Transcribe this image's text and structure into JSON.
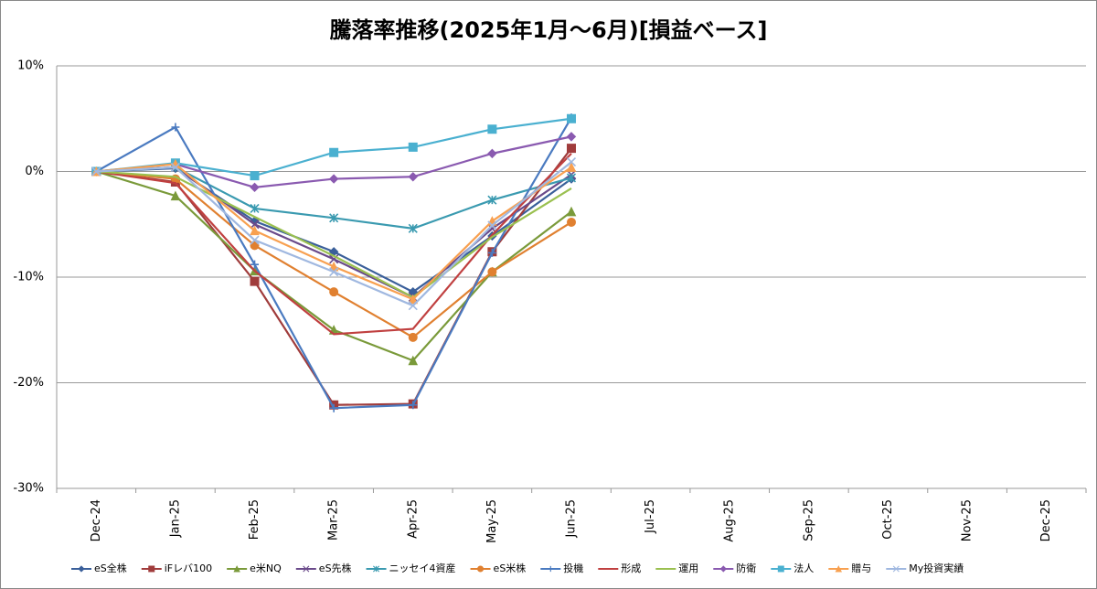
{
  "chart_data": {
    "type": "line",
    "title": "騰落率推移(2025年1月～6月)[損益ベース]",
    "categories": [
      "Dec-24",
      "Jan-25",
      "Feb-25",
      "Mar-25",
      "Apr-25",
      "May-25",
      "Jun-25",
      "Jul-25",
      "Aug-25",
      "Sep-25",
      "Oct-25",
      "Nov-25",
      "Dec-25"
    ],
    "ylim": [
      -30,
      10
    ],
    "yticks": [
      {
        "value": -30,
        "label": "-30%"
      },
      {
        "value": -20,
        "label": "-20%"
      },
      {
        "value": -10,
        "label": "-10%"
      },
      {
        "value": 0,
        "label": "0%"
      },
      {
        "value": 10,
        "label": "10%"
      }
    ],
    "grid": true,
    "legend": "bottom",
    "series": [
      {
        "name": "eS全株",
        "color": "#3a5f9a",
        "marker": "diamond",
        "values": [
          0,
          0.3,
          -4.7,
          -7.6,
          -11.4,
          -6.1,
          -0.7,
          null,
          null,
          null,
          null,
          null,
          null
        ]
      },
      {
        "name": "iFレバ100",
        "color": "#a03c3c",
        "marker": "square",
        "values": [
          0,
          -1.0,
          -10.4,
          -22.1,
          -22.0,
          -7.6,
          2.2,
          null,
          null,
          null,
          null,
          null,
          null
        ]
      },
      {
        "name": "e米NQ",
        "color": "#7a9a3a",
        "marker": "triangle",
        "values": [
          0,
          -2.3,
          -9.4,
          -15.0,
          -17.9,
          -9.5,
          -3.8,
          null,
          null,
          null,
          null,
          null,
          null
        ]
      },
      {
        "name": "eS先株",
        "color": "#6a4a8a",
        "marker": "x",
        "values": [
          0,
          0.4,
          -5.0,
          -8.3,
          -11.9,
          -5.4,
          -0.3,
          null,
          null,
          null,
          null,
          null,
          null
        ]
      },
      {
        "name": "ニッセイ4資産",
        "color": "#3a9ab0",
        "marker": "star",
        "values": [
          0,
          0.4,
          -3.5,
          -4.4,
          -5.4,
          -2.7,
          -0.6,
          null,
          null,
          null,
          null,
          null,
          null
        ]
      },
      {
        "name": "eS米株",
        "color": "#e08030",
        "marker": "circle",
        "values": [
          0,
          -0.7,
          -7.0,
          -11.4,
          -15.7,
          -9.5,
          -4.8,
          null,
          null,
          null,
          null,
          null,
          null
        ]
      },
      {
        "name": "投機",
        "color": "#4a7ac0",
        "marker": "plus",
        "values": [
          0,
          4.2,
          -8.8,
          -22.4,
          -22.1,
          -7.7,
          5.1,
          null,
          null,
          null,
          null,
          null,
          null
        ]
      },
      {
        "name": "形成",
        "color": "#c04040",
        "marker": "none",
        "values": [
          0,
          -1.1,
          -9.4,
          -15.4,
          -14.9,
          -6.0,
          1.7,
          null,
          null,
          null,
          null,
          null,
          null
        ]
      },
      {
        "name": "運用",
        "color": "#9ac050",
        "marker": "none",
        "values": [
          0,
          -0.5,
          -4.3,
          -8.0,
          -11.9,
          -6.2,
          -1.6,
          null,
          null,
          null,
          null,
          null,
          null
        ]
      },
      {
        "name": "防衛",
        "color": "#8a5ab0",
        "marker": "diamond",
        "values": [
          0,
          0.7,
          -1.5,
          -0.7,
          -0.5,
          1.7,
          3.3,
          null,
          null,
          null,
          null,
          null,
          null
        ]
      },
      {
        "name": "法人",
        "color": "#4ab0d0",
        "marker": "square",
        "values": [
          0,
          0.8,
          -0.4,
          1.8,
          2.3,
          4.0,
          5.0,
          null,
          null,
          null,
          null,
          null,
          null
        ]
      },
      {
        "name": "贈与",
        "color": "#f8a050",
        "marker": "triangle",
        "values": [
          0,
          0.7,
          -5.6,
          -9.0,
          -12.1,
          -4.7,
          0.4,
          null,
          null,
          null,
          null,
          null,
          null
        ]
      },
      {
        "name": "My投資実績",
        "color": "#a0b8e0",
        "marker": "x",
        "values": [
          0,
          0.4,
          -6.5,
          -9.5,
          -12.7,
          -5.1,
          0.9,
          null,
          null,
          null,
          null,
          null,
          null
        ]
      }
    ]
  }
}
